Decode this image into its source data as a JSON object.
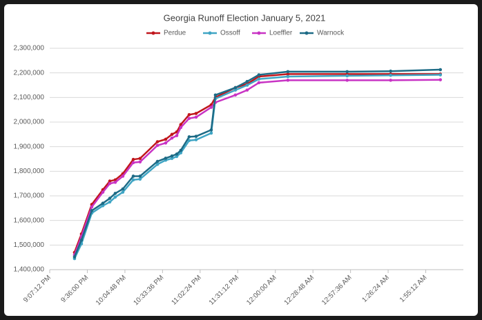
{
  "chart_data": {
    "type": "line",
    "title": "Georgia Runoff Election January 5, 2021",
    "x": [
      1286.2,
      1291.5,
      1299.4,
      1307.9,
      1313.2,
      1317.4,
      1323.2,
      1331.2,
      1336.4,
      1349.7,
      1356.0,
      1360.8,
      1364.5,
      1367.6,
      1374.0,
      1379.3,
      1390.9,
      1394.1,
      1409.4,
      1418.4,
      1427.4,
      1449.6,
      1495.0,
      1528.3,
      1566.4
    ],
    "series": [
      {
        "name": "Perdue",
        "color": "#c0161c",
        "values": [
          1470000,
          1545000,
          1665000,
          1725000,
          1760000,
          1765000,
          1790000,
          1848000,
          1852000,
          1920000,
          1930000,
          1950000,
          1960000,
          1990000,
          2030000,
          2035000,
          2070000,
          2100000,
          2140000,
          2155000,
          2185000,
          2195000,
          2195000,
          2195000,
          2195000
        ]
      },
      {
        "name": "Ossoff",
        "color": "#3fa5c4",
        "values": [
          1445000,
          1505000,
          1630000,
          1660000,
          1675000,
          1695000,
          1715000,
          1765000,
          1768000,
          1828000,
          1845000,
          1852000,
          1860000,
          1875000,
          1925000,
          1928000,
          1955000,
          2095000,
          2130000,
          2150000,
          2175000,
          2185000,
          2188000,
          2190000,
          2192000
        ]
      },
      {
        "name": "Loeffler",
        "color": "#c833c4",
        "values": [
          1460000,
          1535000,
          1655000,
          1715000,
          1750000,
          1755000,
          1780000,
          1835000,
          1838000,
          1905000,
          1915000,
          1935000,
          1945000,
          1978000,
          2015000,
          2020000,
          2060000,
          2080000,
          2110000,
          2130000,
          2160000,
          2170000,
          2170000,
          2170000,
          2172000
        ]
      },
      {
        "name": "Warnock",
        "color": "#1d6b86",
        "values": [
          1452000,
          1520000,
          1640000,
          1670000,
          1690000,
          1710000,
          1728000,
          1780000,
          1780000,
          1840000,
          1853000,
          1862000,
          1870000,
          1885000,
          1940000,
          1942000,
          1968000,
          2110000,
          2140000,
          2165000,
          2192000,
          2205000,
          2205000,
          2207000,
          2213000
        ]
      }
    ],
    "xlim": [
      1267.2,
      1584
    ],
    "xticks": [
      {
        "value": 1267.2,
        "label": "9:07:12 PM"
      },
      {
        "value": 1296,
        "label": "9:36:00 PM"
      },
      {
        "value": 1324.8,
        "label": "10:04:48 PM"
      },
      {
        "value": 1353.6,
        "label": "10:33:36 PM"
      },
      {
        "value": 1382.4,
        "label": "11:02:24 PM"
      },
      {
        "value": 1411.2,
        "label": "11:31:12 PM"
      },
      {
        "value": 1440,
        "label": "12:00:00 AM"
      },
      {
        "value": 1468.8,
        "label": "12:28:48 AM"
      },
      {
        "value": 1497.6,
        "label": "12:57:36 AM"
      },
      {
        "value": 1526.4,
        "label": "1:26:24 AM"
      },
      {
        "value": 1555.2,
        "label": "1:55:12 AM"
      }
    ],
    "ylim": [
      1400000,
      2300000
    ],
    "yticks": [
      {
        "value": 1400000,
        "label": "1,400,000"
      },
      {
        "value": 1500000,
        "label": "1,500,000"
      },
      {
        "value": 1600000,
        "label": "1,600,000"
      },
      {
        "value": 1700000,
        "label": "1,700,000"
      },
      {
        "value": 1800000,
        "label": "1,800,000"
      },
      {
        "value": 1900000,
        "label": "1,900,000"
      },
      {
        "value": 2000000,
        "label": "2,000,000"
      },
      {
        "value": 2100000,
        "label": "2,100,000"
      },
      {
        "value": 2200000,
        "label": "2,200,000"
      },
      {
        "value": 2300000,
        "label": "2,300,000"
      }
    ],
    "grid": true,
    "legend": "top"
  }
}
